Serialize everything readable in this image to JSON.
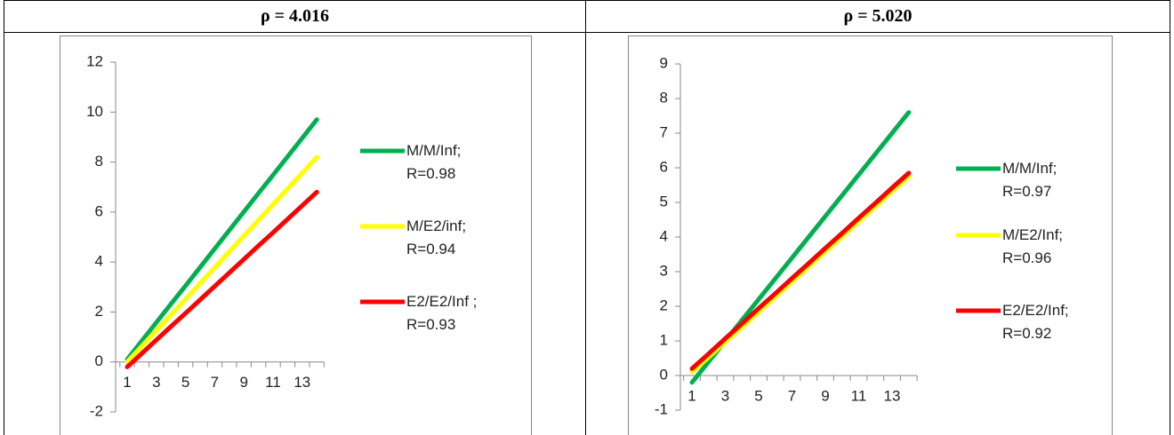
{
  "chart_data": [
    {
      "type": "line",
      "title": "ρ = 4.016",
      "categories": [
        1,
        null,
        3,
        null,
        5,
        null,
        7,
        null,
        9,
        null,
        11,
        null,
        13,
        null
      ],
      "ylim": [
        -2,
        12
      ],
      "yticks": [
        -2,
        0,
        2,
        4,
        6,
        8,
        10,
        12
      ],
      "legend": "right",
      "series": [
        {
          "name": "M/M/Inf; R=0.98",
          "color": "#00b050",
          "values": [
            0.1,
            0.84,
            1.58,
            2.32,
            3.05,
            3.79,
            4.53,
            5.27,
            6.01,
            6.75,
            7.48,
            8.22,
            8.96,
            9.7
          ]
        },
        {
          "name": "M/E2/inf; R=0.94",
          "color": "#ffff00",
          "values": [
            0,
            0.63,
            1.26,
            1.89,
            2.52,
            3.15,
            3.78,
            4.42,
            5.05,
            5.68,
            6.31,
            6.94,
            7.57,
            8.2
          ]
        },
        {
          "name": "E2/E2/Inf ; R=0.93",
          "color": "#ff0000",
          "values": [
            -0.2,
            0.34,
            0.88,
            1.42,
            1.95,
            2.49,
            3.03,
            3.57,
            4.11,
            4.65,
            5.18,
            5.72,
            6.26,
            6.8
          ]
        }
      ]
    },
    {
      "type": "line",
      "title": "ρ = 5.020",
      "categories": [
        1,
        null,
        3,
        null,
        5,
        null,
        7,
        null,
        9,
        null,
        11,
        null,
        13,
        null
      ],
      "ylim": [
        -1,
        9
      ],
      "yticks": [
        -1,
        0,
        1,
        2,
        3,
        4,
        5,
        6,
        7,
        8,
        9
      ],
      "legend": "right",
      "series": [
        {
          "name": "M/M/Inf; R=0.97",
          "color": "#00b050",
          "values": [
            -0.2,
            0.4,
            1.0,
            1.6,
            2.2,
            2.8,
            3.4,
            4.0,
            4.6,
            5.2,
            5.8,
            6.4,
            7.0,
            7.6
          ]
        },
        {
          "name": "M/E2/Inf; R=0.96",
          "color": "#ffff00",
          "values": [
            0.1,
            0.53,
            0.97,
            1.4,
            1.84,
            2.27,
            2.71,
            3.14,
            3.58,
            4.01,
            4.45,
            4.88,
            5.32,
            5.75
          ]
        },
        {
          "name": "E2/E2/Inf; R=0.92",
          "color": "#ff0000",
          "values": [
            0.2,
            0.63,
            1.07,
            1.5,
            1.94,
            2.37,
            2.81,
            3.24,
            3.68,
            4.11,
            4.55,
            4.98,
            5.42,
            5.85
          ]
        }
      ]
    }
  ]
}
